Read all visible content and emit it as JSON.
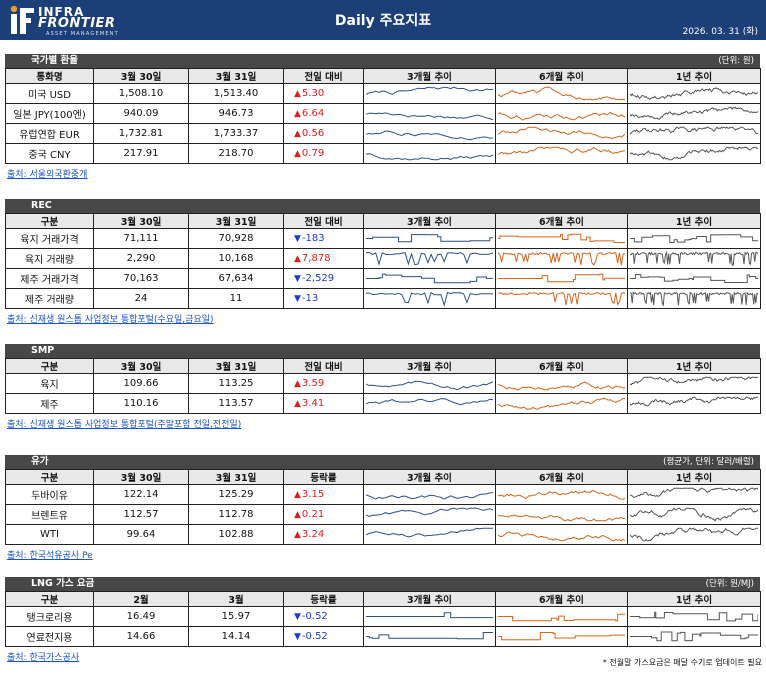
{
  "header": {
    "logo_line1": "INFRA",
    "logo_line2": "FRONTIER",
    "logo_line3": "ASSET MANAGEMENT",
    "title": "Daily 주요지표",
    "date": "2026. 03. 31 (화)"
  },
  "colors": {
    "header_bg": "#1c3f78",
    "section_bg": "#474747",
    "up": "#e01e1e",
    "down": "#1b3ccc",
    "trend3m": "#2c4f8a",
    "trend6m": "#d0651c",
    "trend1y": "#555555"
  },
  "sections": [
    {
      "title": "국가별 환율",
      "unit": "(단위: 원)",
      "columns": [
        "통화명",
        "3월 30일",
        "3월 31일",
        "전일 대비",
        "3개월 추이",
        "6개월 추이",
        "1년 추이"
      ],
      "rows": [
        {
          "name": "미국 USD",
          "prev": "1,508.10",
          "curr": "1,513.40",
          "change": "5.30",
          "dir": "up"
        },
        {
          "name": "일본 JPY(100엔)",
          "prev": "940.09",
          "curr": "946.73",
          "change": "6.64",
          "dir": "up"
        },
        {
          "name": "유럽연합 EUR",
          "prev": "1,732.81",
          "curr": "1,733.37",
          "change": "0.56",
          "dir": "up"
        },
        {
          "name": "중국 CNY",
          "prev": "217.91",
          "curr": "218.70",
          "change": "0.79",
          "dir": "up"
        }
      ],
      "source": "출처: 서울외국환중개"
    },
    {
      "title": "REC",
      "unit": "",
      "columns": [
        "구분",
        "3월 30일",
        "3월 31일",
        "전일 대비",
        "3개월 추이",
        "6개월 추이",
        "1년 추이"
      ],
      "rows": [
        {
          "name": "육지 거래가격",
          "prev": "71,111",
          "curr": "70,928",
          "change": "-183",
          "dir": "down"
        },
        {
          "name": "육지 거래량",
          "prev": "2,290",
          "curr": "10,168",
          "change": "7,878",
          "dir": "up"
        },
        {
          "name": "제주 거래가격",
          "prev": "70,163",
          "curr": "67,634",
          "change": "-2,529",
          "dir": "down"
        },
        {
          "name": "제주 거래량",
          "prev": "24",
          "curr": "11",
          "change": "-13",
          "dir": "down"
        }
      ],
      "source": "출처: 신재생 원스톱 사업정보 통합포털(수요일,금요일)"
    },
    {
      "title": "SMP",
      "unit": "",
      "columns": [
        "구분",
        "3월 30일",
        "3월 31일",
        "전일 대비",
        "3개월 추이",
        "6개월 추이",
        "1년 추이"
      ],
      "rows": [
        {
          "name": "육지",
          "prev": "109.66",
          "curr": "113.25",
          "change": "3.59",
          "dir": "up"
        },
        {
          "name": "제주",
          "prev": "110.16",
          "curr": "113.57",
          "change": "3.41",
          "dir": "up"
        }
      ],
      "source": "출처: 신재생 원스톱 사업정보 통합포털(주말포함 전일,전전일)"
    },
    {
      "title": "유가",
      "unit": "(평균가, 단위: 달러/배럴)",
      "columns": [
        "구분",
        "3월 30일",
        "3월 31일",
        "등락률",
        "3개월 추이",
        "6개월 추이",
        "1년 추이"
      ],
      "rows": [
        {
          "name": "두바이유",
          "prev": "122.14",
          "curr": "125.29",
          "change": "3.15",
          "dir": "up"
        },
        {
          "name": "브렌트유",
          "prev": "112.57",
          "curr": "112.78",
          "change": "0.21",
          "dir": "up"
        },
        {
          "name": "WTI",
          "prev": "99.64",
          "curr": "102.88",
          "change": "3.24",
          "dir": "up"
        }
      ],
      "source": "출처: 한국석유공사 Pe"
    },
    {
      "title": "LNG 가스 요금",
      "unit": "(단위: 원/MJ)",
      "columns": [
        "구분",
        "2월",
        "3월",
        "등락률",
        "3개월 추이",
        "6개월 추이",
        "1년 추이"
      ],
      "rows": [
        {
          "name": "탱크로리용",
          "prev": "16.49",
          "curr": "15.97",
          "change": "-0.52",
          "dir": "down"
        },
        {
          "name": "연료전지용",
          "prev": "14.66",
          "curr": "14.14",
          "change": "-0.52",
          "dir": "down"
        }
      ],
      "source": "출처: 한국가스공사"
    }
  ],
  "footnote": "* 전월말 가스요금은 매달 수기로 업데이트 필요"
}
